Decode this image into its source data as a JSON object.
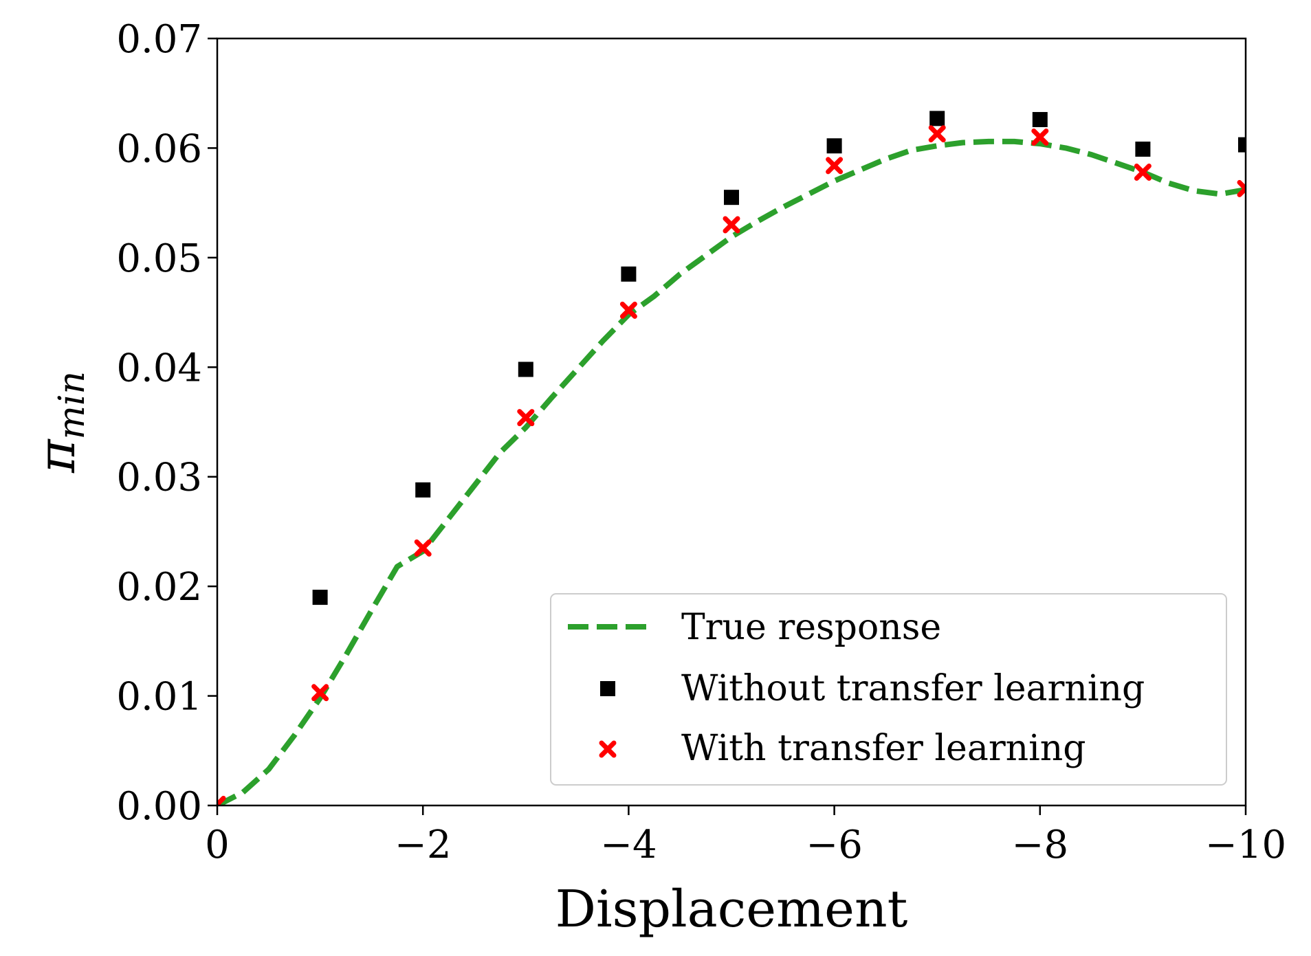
{
  "chart_data": {
    "type": "line",
    "xlabel": "Displacement",
    "ylabel_main": "π",
    "ylabel_sub": "min",
    "xlim": [
      0,
      -10
    ],
    "ylim": [
      0,
      0.07
    ],
    "xticks": [
      0,
      -2,
      -4,
      -6,
      -8,
      -10
    ],
    "xtick_labels": [
      "0",
      "−2",
      "−4",
      "−6",
      "−8",
      "−10"
    ],
    "yticks": [
      0,
      0.01,
      0.02,
      0.03,
      0.04,
      0.05,
      0.06,
      0.07
    ],
    "ytick_labels": [
      "0.00",
      "0.01",
      "0.02",
      "0.03",
      "0.04",
      "0.05",
      "0.06",
      "0.07"
    ],
    "grid": false,
    "legend_position": "lower-right",
    "series": [
      {
        "name": "True response",
        "kind": "line",
        "style": "dashed",
        "color": "#2ca02c",
        "x": [
          0,
          -0.25,
          -0.5,
          -0.75,
          -1,
          -1.25,
          -1.5,
          -1.75,
          -2,
          -2.25,
          -2.5,
          -2.75,
          -3,
          -3.25,
          -3.5,
          -3.75,
          -4,
          -4.25,
          -4.5,
          -4.75,
          -5,
          -5.25,
          -5.5,
          -5.75,
          -6,
          -6.25,
          -6.5,
          -6.75,
          -7,
          -7.25,
          -7.5,
          -7.75,
          -8,
          -8.25,
          -8.5,
          -8.75,
          -9,
          -9.25,
          -9.5,
          -9.75,
          -10
        ],
        "y": [
          0.0,
          0.0012,
          0.0033,
          0.0064,
          0.0098,
          0.0137,
          0.0178,
          0.0218,
          0.0232,
          0.0262,
          0.0292,
          0.0322,
          0.0345,
          0.0372,
          0.0398,
          0.0424,
          0.0448,
          0.0465,
          0.0485,
          0.0502,
          0.0519,
          0.0533,
          0.0546,
          0.0558,
          0.057,
          0.058,
          0.059,
          0.0598,
          0.0602,
          0.0605,
          0.0606,
          0.0606,
          0.0604,
          0.06,
          0.0594,
          0.0586,
          0.0578,
          0.0568,
          0.0561,
          0.0558,
          0.0562
        ]
      },
      {
        "name": "Without transfer learning",
        "kind": "scatter",
        "marker": "square",
        "color": "#000000",
        "x": [
          -1,
          -2,
          -3,
          -4,
          -5,
          -6,
          -7,
          -8,
          -9,
          -10
        ],
        "y": [
          0.019,
          0.0288,
          0.0398,
          0.0485,
          0.0555,
          0.0602,
          0.0627,
          0.0626,
          0.0599,
          0.0603
        ]
      },
      {
        "name": "With transfer learning",
        "kind": "scatter",
        "marker": "x",
        "color": "#ff0000",
        "x": [
          0,
          -1,
          -2,
          -3,
          -4,
          -5,
          -6,
          -7,
          -8,
          -9,
          -10
        ],
        "y": [
          0.0001,
          0.0103,
          0.0235,
          0.0354,
          0.0452,
          0.053,
          0.0584,
          0.0613,
          0.061,
          0.0578,
          0.0563
        ]
      }
    ]
  }
}
